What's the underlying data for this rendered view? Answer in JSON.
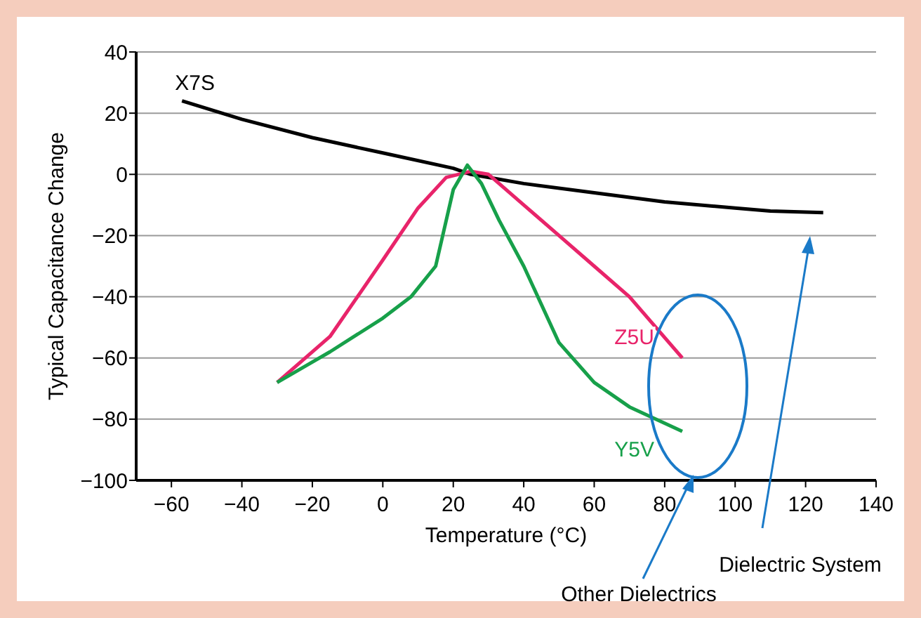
{
  "chart_data": {
    "type": "line",
    "xlabel": "Temperature (°C)",
    "ylabel": "Typical Capacitance Change",
    "xlim": [
      -70,
      140
    ],
    "ylim": [
      -100,
      40
    ],
    "xticks": [
      -60,
      -40,
      -20,
      0,
      20,
      40,
      60,
      80,
      100,
      120,
      140
    ],
    "yticks": [
      -100,
      -80,
      -60,
      -40,
      -20,
      0,
      20,
      40
    ],
    "grid": "y",
    "marker": "none",
    "line_style": "solid",
    "series": [
      {
        "name": "X7S",
        "color": "#000000",
        "x": [
          -57,
          -40,
          -20,
          0,
          20,
          25,
          40,
          60,
          80,
          100,
          110,
          125
        ],
        "values": [
          24,
          18,
          12,
          7,
          2,
          0,
          -3,
          -6,
          -9,
          -11,
          -12,
          -12.5
        ]
      },
      {
        "name": "Z5U",
        "color": "#e8246a",
        "x": [
          -30,
          -15,
          0,
          10,
          18,
          25,
          30,
          40,
          50,
          60,
          70,
          85
        ],
        "values": [
          -68,
          -53,
          -28,
          -11,
          -1,
          1,
          0,
          -10,
          -20,
          -30,
          -40,
          -60
        ]
      },
      {
        "name": "Y5V",
        "color": "#17a04a",
        "x": [
          -30,
          -15,
          0,
          8,
          15,
          20,
          24,
          28,
          33,
          40,
          50,
          60,
          70,
          85
        ],
        "values": [
          -68,
          -58,
          -47,
          -40,
          -30,
          -5,
          3,
          -3,
          -15,
          -30,
          -55,
          -68,
          -76,
          -84
        ]
      }
    ],
    "annotations": [
      "Dielectric System",
      "Other Dielectrics"
    ]
  }
}
